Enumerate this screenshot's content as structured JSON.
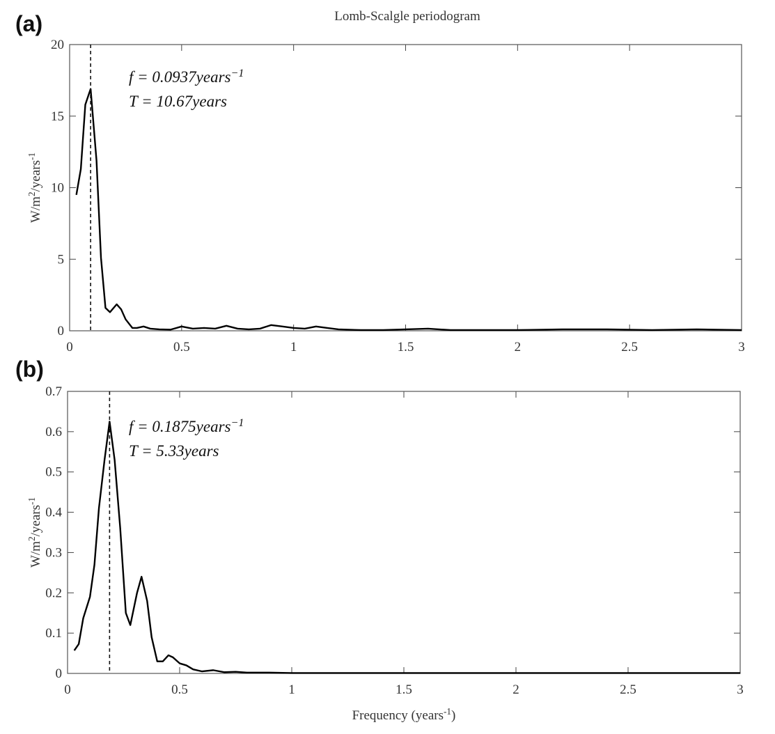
{
  "title": "Lomb-Scalgle periodogram",
  "chart_data": [
    {
      "type": "line",
      "panel_label": "(a)",
      "ylabel": [
        "W/m",
        "2",
        "/years",
        "-1"
      ],
      "annotation_lines": [
        [
          "f = 0.0937years",
          "−1"
        ],
        [
          "T = 10.67years"
        ]
      ],
      "vline": 0.0937,
      "x": [
        0.03,
        0.05,
        0.07,
        0.0937,
        0.12,
        0.14,
        0.16,
        0.18,
        0.21,
        0.23,
        0.25,
        0.28,
        0.3,
        0.33,
        0.36,
        0.4,
        0.45,
        0.5,
        0.55,
        0.6,
        0.65,
        0.7,
        0.75,
        0.8,
        0.85,
        0.9,
        0.95,
        1.0,
        1.05,
        1.1,
        1.15,
        1.2,
        1.3,
        1.4,
        1.5,
        1.6,
        1.7,
        1.8,
        1.9,
        2.0,
        2.2,
        2.4,
        2.6,
        2.8,
        3.0
      ],
      "series": [
        {
          "color": "#000000",
          "values": [
            9.5,
            11.3,
            15.8,
            16.9,
            11.9,
            5.1,
            1.6,
            1.3,
            1.85,
            1.5,
            0.8,
            0.2,
            0.2,
            0.3,
            0.15,
            0.1,
            0.08,
            0.3,
            0.15,
            0.2,
            0.15,
            0.35,
            0.15,
            0.1,
            0.15,
            0.4,
            0.3,
            0.2,
            0.15,
            0.3,
            0.2,
            0.1,
            0.05,
            0.05,
            0.1,
            0.15,
            0.05,
            0.05,
            0.05,
            0.05,
            0.1,
            0.1,
            0.05,
            0.1,
            0.05
          ]
        }
      ],
      "xlim": [
        0,
        3
      ],
      "ylim": [
        0,
        20
      ],
      "xticks": [
        0,
        0.5,
        1,
        1.5,
        2,
        2.5,
        3
      ],
      "yticks": [
        0,
        5,
        10,
        15,
        20
      ]
    },
    {
      "type": "line",
      "panel_label": "(b)",
      "ylabel": [
        "W/m",
        "2",
        "/years",
        "-1"
      ],
      "xlabel": [
        "Frequency (years",
        "-1",
        ")"
      ],
      "annotation_lines": [
        [
          "f = 0.1875years",
          "−1"
        ],
        [
          "T = 5.33years"
        ]
      ],
      "vline": 0.1875,
      "x": [
        0.03,
        0.05,
        0.07,
        0.1,
        0.12,
        0.14,
        0.165,
        0.1875,
        0.21,
        0.235,
        0.26,
        0.28,
        0.31,
        0.33,
        0.355,
        0.375,
        0.4,
        0.425,
        0.45,
        0.47,
        0.5,
        0.53,
        0.56,
        0.6,
        0.65,
        0.7,
        0.75,
        0.8,
        0.9,
        1.0,
        1.5,
        2.0,
        2.5,
        3.0
      ],
      "series": [
        {
          "color": "#000000",
          "values": [
            0.057,
            0.073,
            0.137,
            0.19,
            0.27,
            0.41,
            0.53,
            0.625,
            0.53,
            0.36,
            0.15,
            0.12,
            0.2,
            0.24,
            0.18,
            0.09,
            0.03,
            0.03,
            0.045,
            0.04,
            0.025,
            0.02,
            0.01,
            0.005,
            0.008,
            0.003,
            0.004,
            0.002,
            0.002,
            0.001,
            0.001,
            0.001,
            0.001,
            0.001
          ]
        }
      ],
      "xlim": [
        0,
        3
      ],
      "ylim": [
        0,
        0.7
      ],
      "xticks": [
        0,
        0.5,
        1,
        1.5,
        2,
        2.5,
        3
      ],
      "yticks": [
        0,
        0.1,
        0.2,
        0.3,
        0.4,
        0.5,
        0.6,
        0.7
      ]
    }
  ]
}
